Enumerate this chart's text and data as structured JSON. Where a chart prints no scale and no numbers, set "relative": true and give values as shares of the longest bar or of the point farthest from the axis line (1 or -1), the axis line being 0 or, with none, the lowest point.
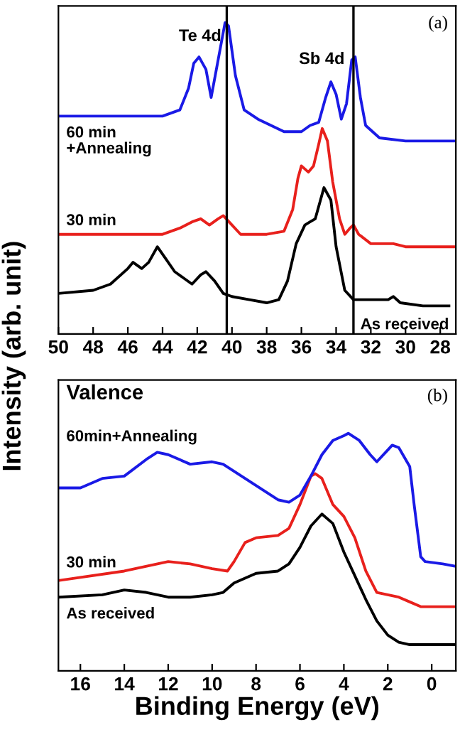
{
  "chart_data": [
    {
      "type": "line",
      "relative": true,
      "ylabel": "Intensity (arb. unit)",
      "xlim": [
        50,
        27.1
      ],
      "xticks": [
        50,
        48,
        46,
        44,
        42,
        40,
        38,
        36,
        34,
        32,
        30,
        28
      ],
      "tick_labels": "x",
      "grid": false,
      "legend": false,
      "annotations": [
        "Te 4d",
        "Sb 4d",
        "(a)"
      ],
      "ref_lines": [
        {
          "axis": "x",
          "value": 40.3,
          "color": "#000000"
        },
        {
          "axis": "x",
          "value": 33,
          "color": "#000000"
        }
      ],
      "series": [
        {
          "name": "As received",
          "color": "#000000",
          "x": [
            50,
            48,
            47,
            46,
            45.7,
            45.2,
            44.8,
            44.3,
            43.8,
            43.3,
            42.8,
            42.3,
            41.8,
            41.5,
            41,
            40.5,
            40,
            39,
            38,
            37.3,
            36.8,
            36.3,
            35.8,
            35.5,
            35.2,
            34.7,
            34.3,
            34,
            33.5,
            33,
            32,
            31,
            30.7,
            30.3,
            29,
            27.5
          ],
          "values": [
            0.13,
            0.14,
            0.16,
            0.21,
            0.23,
            0.21,
            0.23,
            0.28,
            0.24,
            0.2,
            0.18,
            0.16,
            0.19,
            0.2,
            0.17,
            0.13,
            0.12,
            0.11,
            0.1,
            0.11,
            0.17,
            0.29,
            0.35,
            0.36,
            0.37,
            0.47,
            0.43,
            0.28,
            0.14,
            0.11,
            0.11,
            0.11,
            0.12,
            0.1,
            0.09,
            0.09
          ]
        },
        {
          "name": "30 min",
          "color": "#e8201c",
          "x": [
            50,
            44,
            43,
            42.3,
            41.8,
            41.3,
            40.8,
            40.5,
            40,
            39.5,
            38,
            37,
            36.5,
            36.2,
            36,
            35.6,
            35.3,
            35,
            34.8,
            34.5,
            34.2,
            33.8,
            33.5,
            33.2,
            33,
            32.7,
            32,
            31,
            30.7,
            30,
            28,
            27.2
          ],
          "values": [
            0.32,
            0.32,
            0.34,
            0.36,
            0.37,
            0.35,
            0.37,
            0.38,
            0.35,
            0.32,
            0.32,
            0.33,
            0.4,
            0.5,
            0.54,
            0.52,
            0.54,
            0.61,
            0.66,
            0.62,
            0.49,
            0.37,
            0.32,
            0.34,
            0.35,
            0.32,
            0.29,
            0.29,
            0.29,
            0.28,
            0.28,
            0.28
          ]
        },
        {
          "name": "60 min\n+Annealing",
          "color": "#1a1ae6",
          "x": [
            50,
            44,
            43,
            42.5,
            42.2,
            41.9,
            41.5,
            41.2,
            40.8,
            40.4,
            40.2,
            39.8,
            39.3,
            38.5,
            37,
            36,
            35.5,
            35,
            34.6,
            34.3,
            34,
            33.7,
            33.4,
            33.1,
            32.9,
            32.6,
            32.3,
            31.5,
            30,
            27.2
          ],
          "values": [
            0.7,
            0.7,
            0.72,
            0.79,
            0.87,
            0.89,
            0.85,
            0.76,
            0.88,
            1.0,
            0.99,
            0.83,
            0.72,
            0.69,
            0.65,
            0.65,
            0.67,
            0.68,
            0.76,
            0.81,
            0.77,
            0.69,
            0.74,
            0.88,
            0.89,
            0.76,
            0.67,
            0.63,
            0.62,
            0.62
          ]
        }
      ]
    },
    {
      "type": "line",
      "relative": true,
      "title": "Valence",
      "xlabel": "Binding Energy (eV)",
      "xlim": [
        17,
        -1.1
      ],
      "xticks": [
        16,
        14,
        12,
        10,
        8,
        6,
        4,
        2,
        0
      ],
      "tick_labels": "x",
      "grid": false,
      "legend": false,
      "annotations": [
        "(b)"
      ],
      "series": [
        {
          "name": "As received",
          "color": "#000000",
          "x": [
            17,
            15,
            14,
            13,
            12,
            11,
            10,
            9.5,
            9,
            8,
            7,
            6.5,
            6,
            5.5,
            5,
            4.5,
            4,
            3.5,
            3,
            2.5,
            2,
            1.5,
            1,
            -1.1
          ],
          "values": [
            0.31,
            0.32,
            0.34,
            0.33,
            0.31,
            0.31,
            0.32,
            0.33,
            0.37,
            0.41,
            0.42,
            0.45,
            0.52,
            0.61,
            0.66,
            0.62,
            0.5,
            0.4,
            0.3,
            0.21,
            0.15,
            0.12,
            0.11,
            0.11
          ]
        },
        {
          "name": "30 min",
          "color": "#e8201c",
          "x": [
            17,
            14,
            12,
            11,
            10,
            9.3,
            9,
            8.5,
            8,
            7,
            6.5,
            6,
            5.5,
            5.3,
            5,
            4.5,
            4,
            3.5,
            3,
            2.5,
            2,
            1.5,
            1,
            0.5,
            -1.1
          ],
          "values": [
            0.38,
            0.42,
            0.46,
            0.45,
            0.43,
            0.42,
            0.46,
            0.54,
            0.56,
            0.57,
            0.6,
            0.7,
            0.82,
            0.83,
            0.81,
            0.7,
            0.65,
            0.56,
            0.42,
            0.33,
            0.32,
            0.31,
            0.29,
            0.27,
            0.27
          ]
        },
        {
          "name": "60min+Annealing",
          "color": "#1a1ae6",
          "x": [
            17,
            16,
            15,
            14,
            13,
            12.5,
            12,
            11,
            10,
            9.5,
            9,
            8,
            7,
            6.5,
            6,
            5.5,
            5,
            4.5,
            4,
            3.8,
            3.3,
            2.8,
            2.5,
            2,
            1.8,
            1.5,
            1,
            0.8,
            0.5,
            0.3,
            -0.5,
            -1.1
          ],
          "values": [
            0.77,
            0.77,
            0.81,
            0.82,
            0.89,
            0.92,
            0.91,
            0.87,
            0.88,
            0.87,
            0.84,
            0.78,
            0.72,
            0.71,
            0.74,
            0.82,
            0.91,
            0.97,
            0.99,
            1.0,
            0.97,
            0.91,
            0.88,
            0.93,
            0.95,
            0.94,
            0.86,
            0.7,
            0.48,
            0.46,
            0.45,
            0.44
          ]
        }
      ]
    }
  ]
}
